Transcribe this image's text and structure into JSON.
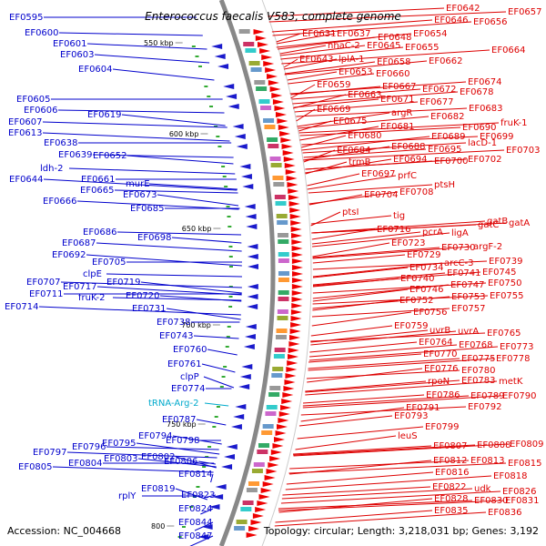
{
  "title": "Enterococcus faecalis V583, complete genome",
  "accession": "Accession: NC_004668",
  "summary": "Topology: circular; Length: 3,218,031 bp; Genes: 3,192",
  "colors": {
    "left": "#0000cc",
    "right": "#dd0000",
    "trna": "#00aacc",
    "backbone": "#888888"
  },
  "kbp_markers": [
    "550 kbp",
    "600 kbp",
    "650 kbp",
    "700 kbp",
    "750 kbp",
    "800"
  ],
  "left_labels": [
    {
      "t": "EF0595"
    },
    {
      "t": "EF0600"
    },
    {
      "t": "EF0601"
    },
    {
      "t": "EF0603"
    },
    {
      "t": "EF0604"
    },
    {
      "t": "EF0605"
    },
    {
      "t": "EF0606"
    },
    {
      "t": "EF0607"
    },
    {
      "t": "EF0613"
    },
    {
      "t": "EF0619"
    },
    {
      "t": "EF0638"
    },
    {
      "t": "EF0639"
    },
    {
      "t": "ldh-2"
    },
    {
      "t": "EF0652"
    },
    {
      "t": "EF0644"
    },
    {
      "t": "EF0661"
    },
    {
      "t": "EF0665"
    },
    {
      "t": "murE"
    },
    {
      "t": "EF0666"
    },
    {
      "t": "EF0673"
    },
    {
      "t": "EF0685"
    },
    {
      "t": "EF0686"
    },
    {
      "t": "EF0698"
    },
    {
      "t": "EF0687"
    },
    {
      "t": "EF0692"
    },
    {
      "t": "EF0705"
    },
    {
      "t": "clpE"
    },
    {
      "t": "EF0707"
    },
    {
      "t": "EF0717"
    },
    {
      "t": "EF0719"
    },
    {
      "t": "EF0711"
    },
    {
      "t": "fruK-2"
    },
    {
      "t": "EF0720"
    },
    {
      "t": "EF0714"
    },
    {
      "t": "EF0731"
    },
    {
      "t": "EF0738"
    },
    {
      "t": "EF0743"
    },
    {
      "t": "EF0760"
    },
    {
      "t": "EF0761"
    },
    {
      "t": "clpP"
    },
    {
      "t": "EF0774"
    },
    {
      "t": "tRNA-Arg-2"
    },
    {
      "t": "EF0787"
    },
    {
      "t": "EF0794"
    },
    {
      "t": "EF0795"
    },
    {
      "t": "EF0798"
    },
    {
      "t": "EF0796"
    },
    {
      "t": "EF0797"
    },
    {
      "t": "EF0803"
    },
    {
      "t": "EF0802"
    },
    {
      "t": "EF0804"
    },
    {
      "t": "EF0806"
    },
    {
      "t": "EF0805"
    },
    {
      "t": "EF0814"
    },
    {
      "t": "EF0819"
    },
    {
      "t": "rplY"
    },
    {
      "t": "EF0823"
    },
    {
      "t": "EF0824"
    },
    {
      "t": "EF0844"
    },
    {
      "t": "EF0847"
    }
  ],
  "right_labels": [
    {
      "t": "EF0642"
    },
    {
      "t": "EF0657"
    },
    {
      "t": "EF0646"
    },
    {
      "t": "EF0656"
    },
    {
      "t": "EF0631"
    },
    {
      "t": "EF0637"
    },
    {
      "t": "EF0648"
    },
    {
      "t": "EF0654"
    },
    {
      "t": "nhaC-2"
    },
    {
      "t": "EF0645"
    },
    {
      "t": "EF0655"
    },
    {
      "t": "EF0664"
    },
    {
      "t": "EF0643"
    },
    {
      "t": "lplA-1"
    },
    {
      "t": "EF0658"
    },
    {
      "t": "EF0662"
    },
    {
      "t": "EF0653"
    },
    {
      "t": "EF0660"
    },
    {
      "t": "EF0674"
    },
    {
      "t": "EF0659"
    },
    {
      "t": "EF0667"
    },
    {
      "t": "EF0672"
    },
    {
      "t": "EF0678"
    },
    {
      "t": "EF0663"
    },
    {
      "t": "EF0671"
    },
    {
      "t": "EF0677"
    },
    {
      "t": "EF0669"
    },
    {
      "t": "argR"
    },
    {
      "t": "EF0683"
    },
    {
      "t": "EF0675"
    },
    {
      "t": "EF0682"
    },
    {
      "t": "EF0681"
    },
    {
      "t": "EF0690"
    },
    {
      "t": "fruK-1"
    },
    {
      "t": "EF0680"
    },
    {
      "t": "EF0689"
    },
    {
      "t": "EF0699"
    },
    {
      "t": "lacD-1"
    },
    {
      "t": "EF0684"
    },
    {
      "t": "EF0688"
    },
    {
      "t": "EF0695"
    },
    {
      "t": "EF0703"
    },
    {
      "t": "trmB"
    },
    {
      "t": "EF0694"
    },
    {
      "t": "EF0700"
    },
    {
      "t": "EF0702"
    },
    {
      "t": "EF0697"
    },
    {
      "t": "prfC"
    },
    {
      "t": "ptsH"
    },
    {
      "t": "EF0704"
    },
    {
      "t": "EF0708"
    },
    {
      "t": "ptsI"
    },
    {
      "t": "tig"
    },
    {
      "t": "EF0716"
    },
    {
      "t": "pcrA"
    },
    {
      "t": "ligA"
    },
    {
      "t": "gatC"
    },
    {
      "t": "gatA"
    },
    {
      "t": "gatB"
    },
    {
      "t": "EF0723"
    },
    {
      "t": "EF0729"
    },
    {
      "t": "EF0730"
    },
    {
      "t": "argF-2"
    },
    {
      "t": "arcC-3"
    },
    {
      "t": "EF0739"
    },
    {
      "t": "EF0734"
    },
    {
      "t": "EF0741"
    },
    {
      "t": "EF0745"
    },
    {
      "t": "EF0740"
    },
    {
      "t": "EF0750"
    },
    {
      "t": "EF0746"
    },
    {
      "t": "EF0747"
    },
    {
      "t": "EF0755"
    },
    {
      "t": "EF0752"
    },
    {
      "t": "EF0753"
    },
    {
      "t": "EF0756"
    },
    {
      "t": "EF0757"
    },
    {
      "t": "EF0759"
    },
    {
      "t": "uvrB"
    },
    {
      "t": "uvrA"
    },
    {
      "t": "EF0765"
    },
    {
      "t": "EF0764"
    },
    {
      "t": "EF0768"
    },
    {
      "t": "EF0773"
    },
    {
      "t": "EF0770"
    },
    {
      "t": "EF0775"
    },
    {
      "t": "EF0778"
    },
    {
      "t": "EF0776"
    },
    {
      "t": "EF0780"
    },
    {
      "t": "rpoN"
    },
    {
      "t": "EF0783"
    },
    {
      "t": "metK"
    },
    {
      "t": "EF0786"
    },
    {
      "t": "EF0789"
    },
    {
      "t": "EF0790"
    },
    {
      "t": "EF0791"
    },
    {
      "t": "EF0792"
    },
    {
      "t": "EF0793"
    },
    {
      "t": "EF0799"
    },
    {
      "t": "leuS"
    },
    {
      "t": "EF0807"
    },
    {
      "t": "EF0808"
    },
    {
      "t": "EF0809"
    },
    {
      "t": "EF0812"
    },
    {
      "t": "EF0813"
    },
    {
      "t": "EF0815"
    },
    {
      "t": "EF0816"
    },
    {
      "t": "EF0818"
    },
    {
      "t": "EF0822"
    },
    {
      "t": "udk"
    },
    {
      "t": "EF0826"
    },
    {
      "t": "EF0828"
    },
    {
      "t": "EF0830"
    },
    {
      "t": "EF0831"
    },
    {
      "t": "EF0835"
    },
    {
      "t": "EF0836"
    }
  ]
}
